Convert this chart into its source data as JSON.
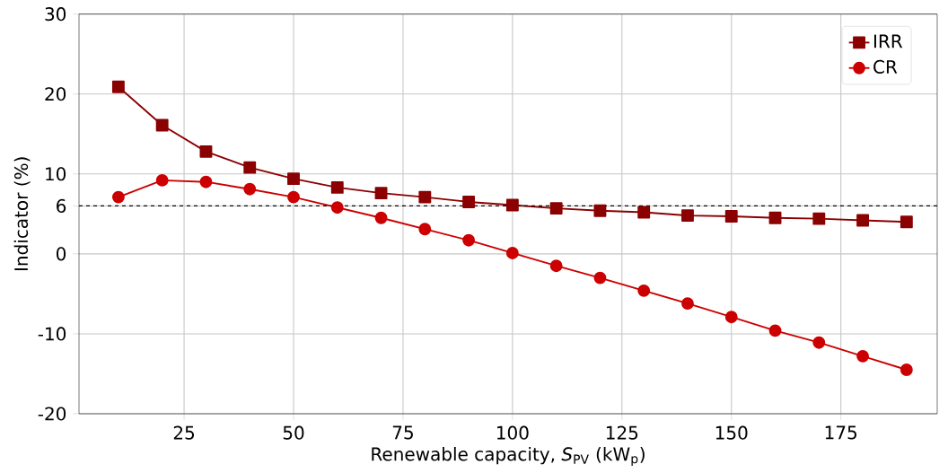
{
  "chart_data": {
    "type": "line",
    "xlabel": "Renewable capacity, *S*$_{PV}$ (kW$_{p}$)",
    "ylabel": "Indicator (%)",
    "x": [
      10,
      20,
      30,
      40,
      50,
      60,
      70,
      80,
      90,
      100,
      110,
      120,
      130,
      140,
      150,
      160,
      170,
      180,
      190
    ],
    "series": [
      {
        "name": "IRR",
        "color": "#8b0000",
        "marker": "square",
        "values": [
          20.9,
          16.1,
          12.8,
          10.8,
          9.4,
          8.3,
          7.6,
          7.1,
          6.5,
          6.1,
          5.7,
          5.4,
          5.2,
          4.8,
          4.7,
          4.5,
          4.4,
          4.2,
          4.0
        ]
      },
      {
        "name": "CR",
        "color": "#cc0000",
        "marker": "circle",
        "values": [
          7.1,
          9.2,
          9.0,
          8.1,
          7.1,
          5.8,
          4.5,
          3.1,
          1.7,
          0.1,
          -1.5,
          -3.0,
          -4.6,
          -6.2,
          -7.9,
          -9.6,
          -11.1,
          -12.8,
          -14.5
        ]
      }
    ],
    "xlim": [
      1,
      197
    ],
    "ylim": [
      -20,
      30
    ],
    "xticks": [
      25,
      50,
      75,
      100,
      125,
      150,
      175
    ],
    "yticks": [
      -20,
      -10,
      0,
      6,
      10,
      20,
      30
    ],
    "ref_lines": [
      {
        "axis": "y",
        "value": 6,
        "color": "#000000",
        "line_style": "dashed"
      }
    ],
    "grid": true,
    "legend": "top right",
    "line_style": "solid"
  }
}
